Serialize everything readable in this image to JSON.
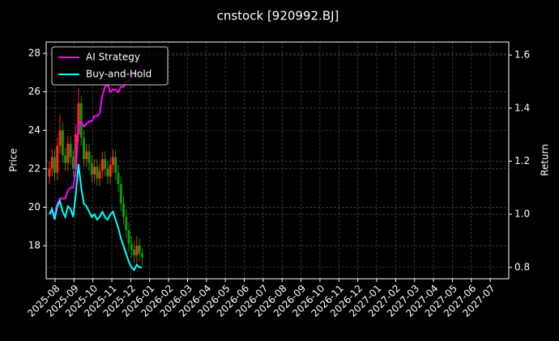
{
  "chart_data": {
    "type": "candlestick",
    "title": "cnstock [920992.BJ]",
    "y_label": "Price",
    "y2_label": "Return",
    "xlim": [
      -0.47,
      23.98
    ],
    "xticks": [
      {
        "value": 0,
        "label": "2025-08"
      },
      {
        "value": 1,
        "label": "2025-09"
      },
      {
        "value": 2,
        "label": "2025-10"
      },
      {
        "value": 3,
        "label": "2025-11"
      },
      {
        "value": 4,
        "label": "2025-12"
      },
      {
        "value": 5,
        "label": "2026-01"
      },
      {
        "value": 6,
        "label": "2026-02"
      },
      {
        "value": 7,
        "label": "2026-03"
      },
      {
        "value": 8,
        "label": "2026-04"
      },
      {
        "value": 9,
        "label": "2026-05"
      },
      {
        "value": 10,
        "label": "2026-06"
      },
      {
        "value": 11,
        "label": "2026-07"
      },
      {
        "value": 12,
        "label": "2026-08"
      },
      {
        "value": 13,
        "label": "2026-09"
      },
      {
        "value": 14,
        "label": "2026-10"
      },
      {
        "value": 15,
        "label": "2026-11"
      },
      {
        "value": 16,
        "label": "2026-12"
      },
      {
        "value": 17,
        "label": "2027-01"
      },
      {
        "value": 18,
        "label": "2027-02"
      },
      {
        "value": 19,
        "label": "2027-03"
      },
      {
        "value": 20,
        "label": "2027-04"
      },
      {
        "value": 21,
        "label": "2027-05"
      },
      {
        "value": 22,
        "label": "2027-06"
      },
      {
        "value": 23,
        "label": "2027-07"
      }
    ],
    "ylim": [
      16.28,
      28.59
    ],
    "yticks": [
      18,
      20,
      22,
      24,
      26,
      28
    ],
    "y2lim": [
      0.757,
      1.649
    ],
    "y2ticks": [
      0.8,
      {
        "value": 1,
        "label": "1.0"
      },
      1.2,
      1.4,
      1.6
    ],
    "grid": true,
    "legend": "upper left",
    "up_color": "#ff2a1a",
    "down_color": "#0a9a0a",
    "x": [
      -0.3,
      -0.16,
      -0.02,
      0.12,
      0.26,
      0.4,
      0.54,
      0.68,
      0.82,
      0.96,
      1.1,
      1.24,
      1.38,
      1.52,
      1.66,
      1.8,
      1.94,
      2.08,
      2.22,
      2.36,
      2.5,
      2.64,
      2.78,
      2.92,
      3.06,
      3.2,
      3.34,
      3.48,
      3.62,
      3.76,
      3.9,
      4.04,
      4.18,
      4.32,
      4.46,
      4.6
    ],
    "open": [
      21.6,
      22.0,
      22.6,
      21.8,
      23.2,
      24.0,
      22.7,
      22.3,
      23.3,
      22.6,
      22.0,
      23.8,
      25.4,
      23.6,
      22.5,
      22.9,
      22.3,
      21.7,
      22.1,
      21.5,
      21.9,
      22.5,
      22.0,
      21.6,
      22.2,
      22.6,
      21.8,
      21.2,
      20.2,
      19.5,
      18.8,
      18.1,
      17.8,
      17.5,
      18.0,
      17.6
    ],
    "high": [
      22.4,
      23.0,
      23.0,
      23.6,
      24.8,
      24.4,
      23.1,
      23.7,
      23.7,
      23.0,
      24.3,
      26.2,
      25.8,
      24.0,
      23.3,
      23.3,
      22.7,
      22.5,
      22.5,
      22.3,
      22.9,
      22.9,
      22.4,
      22.6,
      23.0,
      23.0,
      22.2,
      21.6,
      20.6,
      19.9,
      19.2,
      18.5,
      18.2,
      18.5,
      18.4,
      17.9
    ],
    "low": [
      21.2,
      21.6,
      21.4,
      21.4,
      22.8,
      22.3,
      21.9,
      21.9,
      22.2,
      21.6,
      21.6,
      23.4,
      23.2,
      22.1,
      22.1,
      21.9,
      21.3,
      21.3,
      21.1,
      21.1,
      21.5,
      21.6,
      21.2,
      21.2,
      21.8,
      21.4,
      20.8,
      19.8,
      19.1,
      18.4,
      17.7,
      17.4,
      17.1,
      17.1,
      17.2,
      17.0
    ],
    "close": [
      22.0,
      22.6,
      21.8,
      23.2,
      24.0,
      22.7,
      22.3,
      23.3,
      22.6,
      22.0,
      23.8,
      25.4,
      23.6,
      22.5,
      22.9,
      22.3,
      21.7,
      22.1,
      21.5,
      21.9,
      22.5,
      22.0,
      21.6,
      22.2,
      22.6,
      21.8,
      21.2,
      20.2,
      19.5,
      18.8,
      18.1,
      17.8,
      17.5,
      18.0,
      17.6,
      17.4
    ],
    "series": [
      {
        "name": "AI Strategy",
        "color": "#ff00ff",
        "axis": "y2",
        "values": [
          1.0,
          1.01,
          1.0,
          1.04,
          1.06,
          1.06,
          1.06,
          1.09,
          1.1,
          1.1,
          1.17,
          1.34,
          1.35,
          1.33,
          1.34,
          1.35,
          1.35,
          1.37,
          1.37,
          1.38,
          1.45,
          1.48,
          1.49,
          1.46,
          1.47,
          1.47,
          1.46,
          1.48,
          1.48,
          1.5,
          1.5,
          1.52,
          1.53,
          1.53,
          1.55,
          1.56
        ]
      },
      {
        "name": "Buy-and-Hold",
        "color": "#00ffff",
        "axis": "y2",
        "values": [
          1.0,
          1.02,
          0.98,
          1.03,
          1.05,
          1.01,
          0.99,
          1.03,
          1.02,
          0.99,
          1.08,
          1.19,
          1.1,
          1.04,
          1.03,
          1.01,
          0.99,
          1.0,
          0.98,
          0.99,
          1.01,
          0.99,
          0.98,
          1.0,
          1.01,
          0.98,
          0.95,
          0.91,
          0.88,
          0.85,
          0.82,
          0.8,
          0.79,
          0.81,
          0.8,
          0.8
        ]
      }
    ]
  }
}
